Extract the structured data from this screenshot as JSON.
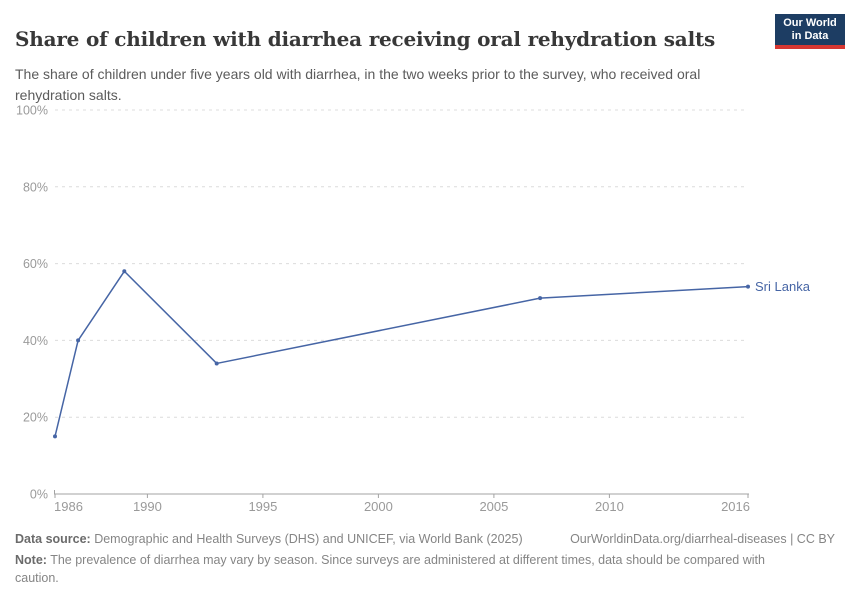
{
  "header": {
    "title": "Share of children with diarrhea receiving oral rehydration salts",
    "subtitle": "The share of children under five years old with diarrhea, in the two weeks prior to the survey, who received oral rehydration salts.",
    "logo": {
      "text": "Our World\nin Data",
      "bg_color": "#1d3d63",
      "stripe_color": "#d73732"
    }
  },
  "chart_data": {
    "type": "line",
    "title": "Share of children with diarrhea receiving oral rehydration salts",
    "series": [
      {
        "name": "Sri Lanka",
        "color": "#4665a5",
        "points": [
          {
            "x": 1986,
            "y": 15
          },
          {
            "x": 1987,
            "y": 40
          },
          {
            "x": 1989,
            "y": 58
          },
          {
            "x": 1993,
            "y": 34
          },
          {
            "x": 2007,
            "y": 51
          },
          {
            "x": 2016,
            "y": 54
          }
        ]
      }
    ],
    "xlabel": "",
    "ylabel": "",
    "xlim": [
      1986,
      2016
    ],
    "ylim": [
      0,
      100
    ],
    "x_ticks": [
      1986,
      1990,
      1995,
      2000,
      2005,
      2010,
      2016
    ],
    "y_ticks": [
      0,
      20,
      40,
      60,
      80,
      100
    ],
    "y_tick_suffix": "%",
    "grid": "horizontal dashed",
    "grid_color": "#dcdcdc",
    "axis_color": "#a3a3a3",
    "legend_position": "end-of-line label"
  },
  "footer": {
    "datasource_label": "Data source:",
    "datasource_text": " Demographic and Health Surveys (DHS) and UNICEF, via World Bank (2025)",
    "link": "OurWorldinData.org/diarrheal-diseases | CC BY",
    "note_label": "Note:",
    "note_text": " The prevalence of diarrhea may vary by season. Since surveys are administered at different times, data should be compared with caution."
  }
}
